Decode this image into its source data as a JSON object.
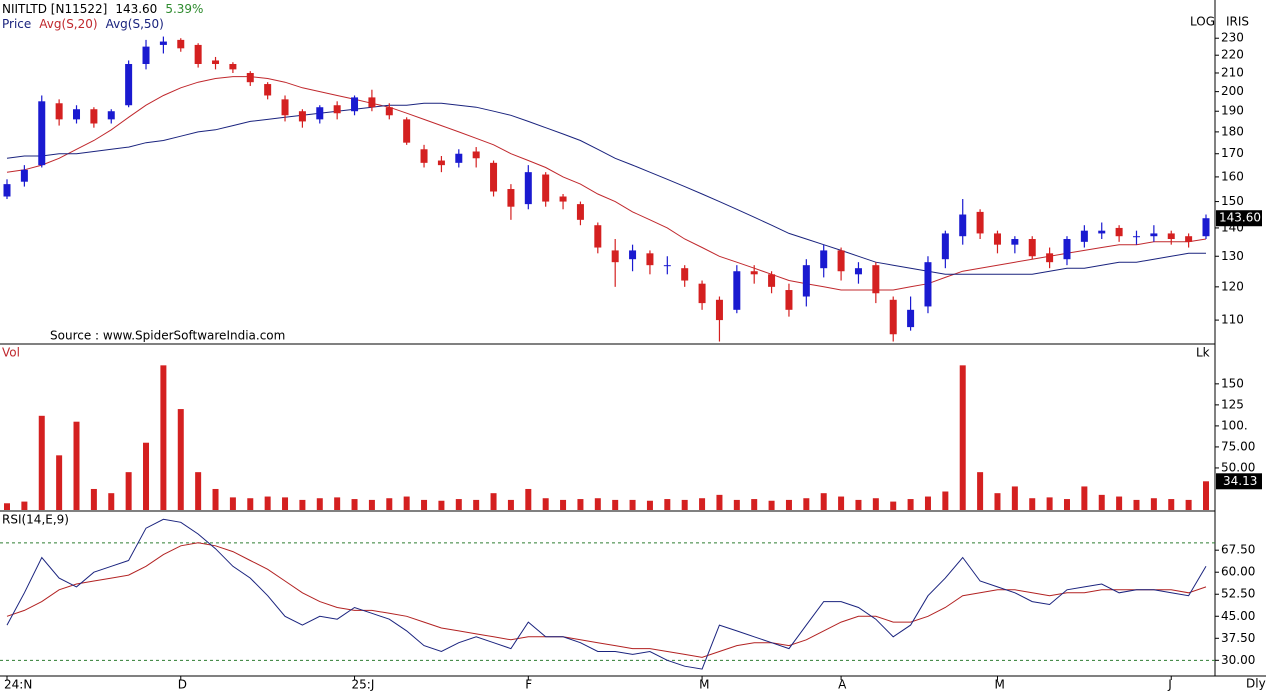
{
  "chart_data": [
    {
      "type": "candlestick",
      "title": "NIITLTD [N11522]",
      "last_price": "143.60",
      "change": "5.39%",
      "price_label": "Price",
      "scale_label": "LOG",
      "provider": "IRIS",
      "source": "Source : www.SpiderSoftwareIndia.com",
      "log_scale": true,
      "up_color": "#1a1ad0",
      "down_color": "#d42020",
      "open": [
        152,
        158,
        165,
        194,
        186,
        191,
        186,
        193,
        215,
        226,
        229,
        226,
        217,
        215,
        210,
        204,
        196,
        190,
        186,
        193,
        190,
        197,
        192,
        186,
        172,
        167,
        166,
        171,
        166,
        155,
        149,
        161,
        152,
        149,
        141,
        132,
        129,
        131,
        127,
        126,
        121,
        116,
        113,
        125,
        124,
        119,
        117,
        126,
        132,
        124,
        127,
        116,
        108,
        114,
        129,
        137,
        146,
        138,
        134,
        136,
        131,
        129,
        135,
        138,
        140,
        137,
        137,
        138,
        137,
        137
      ],
      "high": [
        159,
        165,
        198,
        196,
        193,
        192,
        191,
        217,
        229,
        231,
        230,
        227,
        219,
        216,
        211,
        205,
        198,
        191,
        193,
        195,
        198,
        201,
        194,
        187,
        174,
        169,
        172,
        173,
        167,
        157,
        165,
        162,
        153,
        150,
        142,
        136,
        134,
        132,
        130,
        127,
        122,
        117,
        127,
        127,
        125,
        121,
        129,
        134,
        133,
        128,
        128,
        117,
        117,
        130,
        139,
        151,
        147,
        139,
        137,
        137,
        133,
        137,
        141,
        142,
        141,
        139,
        141,
        139,
        138,
        145
      ],
      "low": [
        151,
        156,
        164,
        183,
        184,
        182,
        184,
        192,
        212,
        221,
        222,
        213,
        212,
        210,
        203,
        196,
        185,
        182,
        184,
        186,
        188,
        190,
        186,
        174,
        164,
        162,
        164,
        164,
        152,
        143,
        147,
        148,
        147,
        141,
        131,
        120,
        125,
        124,
        124,
        120,
        113,
        104,
        112,
        121,
        118,
        111,
        114,
        123,
        122,
        121,
        115,
        104,
        107,
        112,
        126,
        134,
        136,
        131,
        131,
        129,
        126,
        127,
        133,
        136,
        135,
        134,
        135,
        134,
        133,
        136
      ],
      "close": [
        157,
        163,
        195,
        186,
        191,
        184,
        190,
        215,
        225,
        228,
        224,
        215,
        215,
        212,
        205,
        198,
        188,
        185,
        192,
        189,
        197,
        192,
        188,
        175,
        166,
        165,
        170,
        168,
        154,
        148,
        162,
        150,
        150,
        143,
        133,
        128,
        132,
        127,
        127,
        122,
        115,
        110,
        125,
        124,
        120,
        113,
        127,
        132,
        125,
        126,
        118,
        106,
        113,
        128,
        138,
        145,
        138,
        134,
        136,
        130,
        128,
        136,
        139,
        139,
        137,
        137,
        138,
        136,
        135,
        143.6
      ],
      "overlays": [
        {
          "name": "Avg(S,20)",
          "color": "#c0282d",
          "values": [
            162,
            163,
            165,
            168,
            172,
            176,
            181,
            187,
            193,
            198,
            202,
            205,
            207,
            208,
            208,
            207,
            205,
            202,
            200,
            198,
            196,
            194,
            192,
            189,
            186,
            183,
            180,
            177,
            174,
            170,
            167,
            164,
            160,
            157,
            153,
            150,
            146,
            143,
            140,
            136,
            133,
            130,
            128,
            126,
            124,
            122,
            121,
            120,
            119,
            119,
            119,
            119,
            120,
            121,
            123,
            125,
            126,
            127,
            128,
            129,
            130,
            131,
            132,
            133,
            134,
            134,
            135,
            135,
            135,
            136
          ]
        },
        {
          "name": "Avg(S,50)",
          "color": "#1a237e",
          "values": [
            168,
            169,
            169,
            170,
            170,
            171,
            172,
            173,
            175,
            176,
            178,
            180,
            181,
            183,
            185,
            186,
            187,
            188,
            189,
            190,
            191,
            192,
            193,
            193,
            194,
            194,
            193,
            192,
            190,
            188,
            185,
            182,
            179,
            176,
            172,
            168,
            165,
            162,
            159,
            156,
            153,
            150,
            147,
            144,
            141,
            138,
            136,
            134,
            132,
            130,
            128,
            127,
            126,
            125,
            124,
            124,
            124,
            124,
            124,
            124,
            125,
            126,
            126,
            127,
            128,
            128,
            129,
            130,
            131,
            131
          ]
        }
      ],
      "ylim": [
        103.6,
        235
      ],
      "yticks": [
        110,
        120,
        130,
        140,
        150,
        160,
        170,
        180,
        190,
        200,
        210,
        220,
        230
      ]
    },
    {
      "type": "bar",
      "title": "Vol",
      "unit": "Lk",
      "color": "#d42020",
      "values": [
        8,
        10,
        112,
        65,
        105,
        25,
        20,
        45,
        80,
        172,
        120,
        45,
        25,
        15,
        14,
        16,
        15,
        12,
        14,
        15,
        13,
        12,
        14,
        16,
        12,
        11,
        13,
        12,
        20,
        12,
        25,
        14,
        12,
        13,
        14,
        12,
        12,
        11,
        13,
        12,
        14,
        18,
        12,
        13,
        11,
        12,
        14,
        20,
        16,
        12,
        14,
        10,
        13,
        16,
        22,
        172,
        45,
        20,
        28,
        14,
        15,
        13,
        28,
        18,
        16,
        12,
        14,
        13,
        12,
        34.13
      ],
      "ylim": [
        0,
        195
      ],
      "yticks": [
        {
          "value": 50,
          "label": "50.00"
        },
        {
          "value": 75,
          "label": "75.00"
        },
        {
          "value": 100,
          "label": "100."
        },
        125,
        150
      ]
    },
    {
      "type": "line",
      "title": "RSI(14,E,9)",
      "x_end_label": "Dly",
      "categories": [
        "24:N",
        null,
        null,
        null,
        null,
        null,
        null,
        null,
        null,
        null,
        "D",
        null,
        null,
        null,
        null,
        null,
        null,
        null,
        null,
        null,
        "25:J",
        null,
        null,
        null,
        null,
        null,
        null,
        null,
        null,
        null,
        "F",
        null,
        null,
        null,
        null,
        null,
        null,
        null,
        null,
        null,
        "M",
        null,
        null,
        null,
        null,
        null,
        null,
        null,
        "A",
        null,
        null,
        null,
        null,
        null,
        null,
        null,
        null,
        "M",
        null,
        null,
        null,
        null,
        null,
        null,
        null,
        null,
        null,
        "J",
        null,
        null
      ],
      "series": [
        {
          "color": "#1a237e",
          "values": [
            42,
            53,
            65,
            58,
            55,
            60,
            62,
            64,
            75,
            78,
            77,
            73,
            68,
            62,
            58,
            52,
            45,
            42,
            45,
            44,
            48,
            46,
            44,
            40,
            35,
            33,
            36,
            38,
            36,
            34,
            43,
            38,
            38,
            36,
            33,
            33,
            32,
            33,
            30,
            28,
            27,
            42,
            40,
            38,
            36,
            34,
            42,
            50,
            50,
            48,
            44,
            38,
            42,
            52,
            58,
            65,
            57,
            55,
            53,
            50,
            49,
            54,
            55,
            56,
            53,
            54,
            54,
            53,
            52,
            62
          ]
        },
        {
          "color": "#b22222",
          "values": [
            45,
            47,
            50,
            54,
            56,
            57,
            58,
            59,
            62,
            66,
            69,
            70,
            69,
            67,
            64,
            61,
            57,
            53,
            50,
            48,
            47,
            47,
            46,
            45,
            43,
            41,
            40,
            39,
            38,
            37,
            38,
            38,
            38,
            37,
            36,
            35,
            34,
            34,
            33,
            32,
            31,
            33,
            35,
            36,
            36,
            35,
            37,
            40,
            43,
            45,
            45,
            43,
            43,
            45,
            48,
            52,
            53,
            54,
            54,
            53,
            52,
            53,
            53,
            54,
            54,
            54,
            54,
            54,
            53,
            55
          ]
        }
      ],
      "levels": [
        30,
        70
      ],
      "level_color": "#2e7d32",
      "ylim": [
        25,
        80.5
      ],
      "yticks": [
        {
          "value": 30,
          "label": "30.00"
        },
        {
          "value": 37.5,
          "label": "37.50"
        },
        {
          "value": 45,
          "label": "45.00"
        },
        {
          "value": 52.5,
          "label": "52.50"
        },
        {
          "value": 60,
          "label": "60.00"
        },
        {
          "value": 67.5,
          "label": "67.50"
        }
      ]
    }
  ]
}
